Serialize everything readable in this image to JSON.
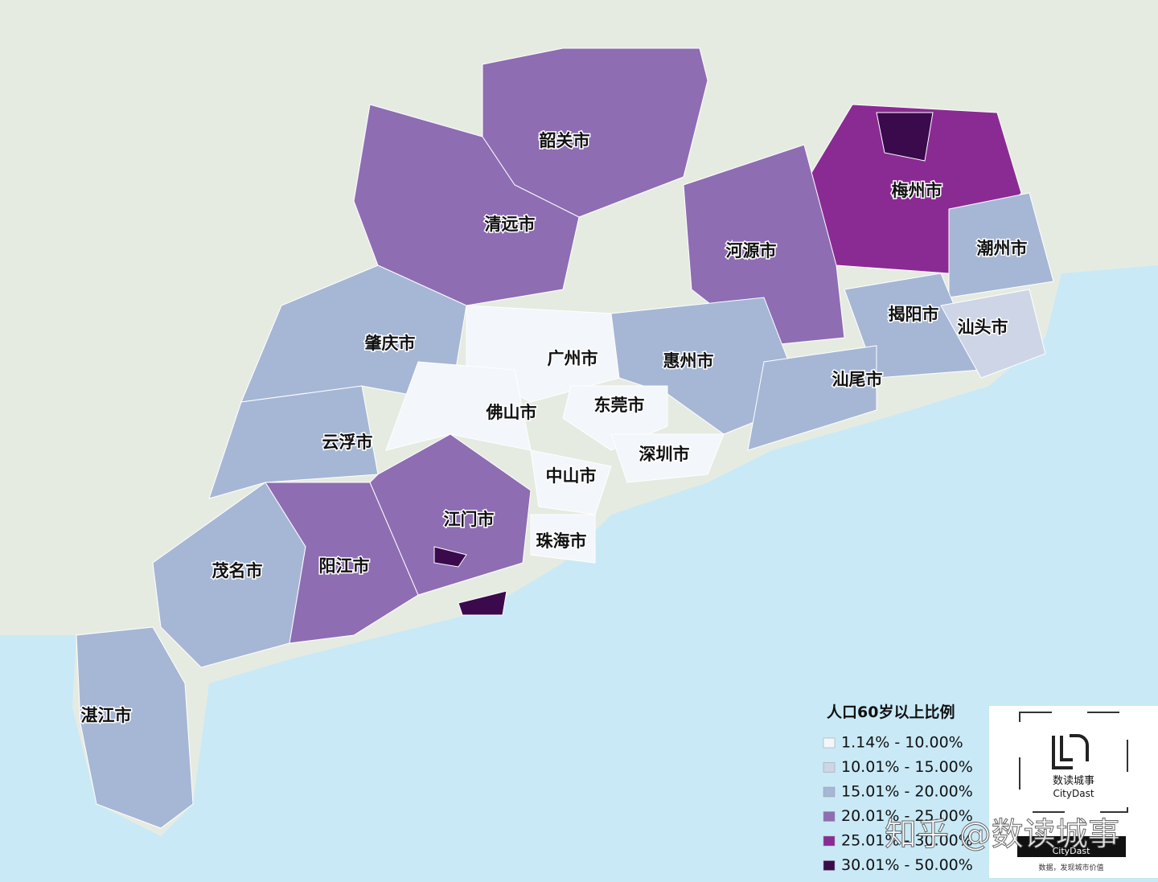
{
  "map": {
    "cities": [
      "韶关市",
      "清远市",
      "梅州市",
      "河源市",
      "潮州市",
      "揭阳市",
      "汕头市",
      "肇庆市",
      "广州市",
      "惠州市",
      "汕尾市",
      "佛山市",
      "东莞市",
      "云浮市",
      "深圳市",
      "中山市",
      "江门市",
      "珠海市",
      "茂名市",
      "阳江市",
      "湛江市"
    ]
  },
  "legend": {
    "title": "人口60岁以上比例",
    "items": [
      {
        "label": "1.14% - 10.00%",
        "color": "#f3f6fa"
      },
      {
        "label": "10.01% - 15.00%",
        "color": "#cdd5e6"
      },
      {
        "label": "15.01% - 20.00%",
        "color": "#a6b6d5"
      },
      {
        "label": "20.01% - 25.00%",
        "color": "#8e6db3"
      },
      {
        "label": "25.01% - 30.00%",
        "color": "#8a2b93"
      },
      {
        "label": "30.01% - 50.00%",
        "color": "#3b0a4d"
      }
    ]
  },
  "logo": {
    "name": "数读城事",
    "name_en": "CityDast",
    "tagline": "数据，发现城市价值"
  },
  "watermark": "知乎 @数读城事"
}
